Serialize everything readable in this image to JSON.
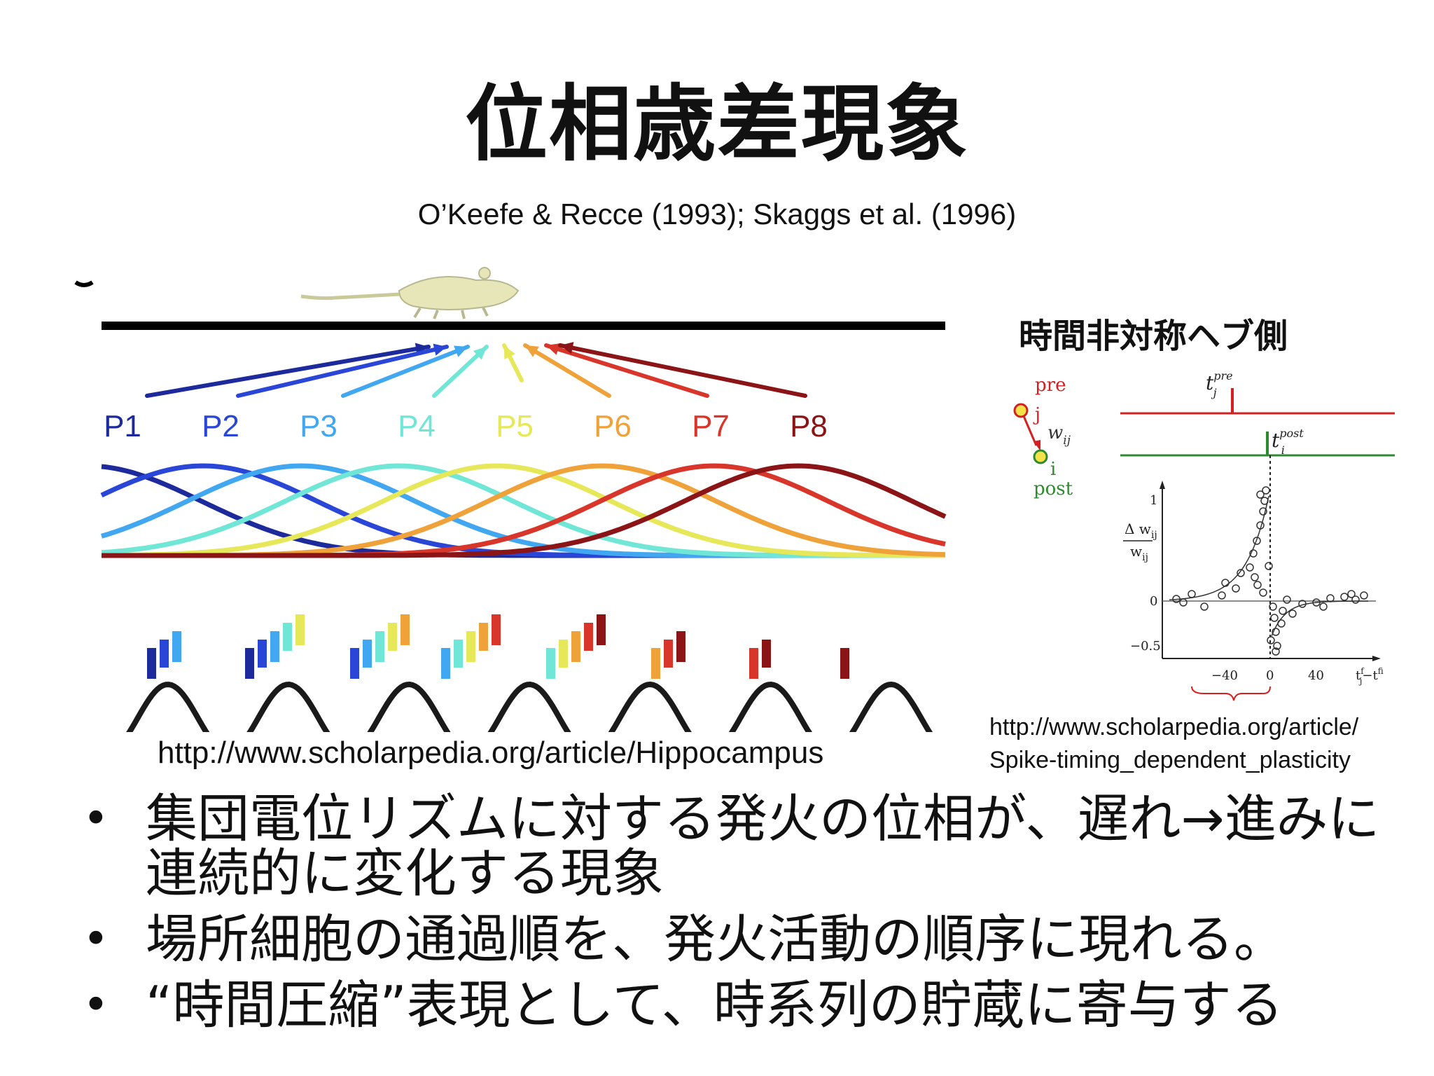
{
  "slide": {
    "title": "位相歳差現象",
    "citation": "O’Keefe & Recce (1993); Skaggs et al. (1996)"
  },
  "left_figure": {
    "labels": [
      "P1",
      "P2",
      "P3",
      "P4",
      "P5",
      "P6",
      "P7",
      "P8"
    ],
    "colors": [
      "#1d2a9c",
      "#2946d6",
      "#41a7f0",
      "#6fe6d6",
      "#e6e85a",
      "#f0a23a",
      "#d8352b",
      "#8b1416"
    ],
    "track_color": "#000000",
    "rat_color": "#e6e6b8",
    "wave_color": "#1a1a1a",
    "url": "http://www.scholarpedia.org/article/Hippocampus"
  },
  "right_figure": {
    "title": "時間非対称ヘブ側",
    "pre_label": "pre",
    "j_label": "j",
    "w_label": "w",
    "w_sub": "ij",
    "i_label": "i",
    "post_label": "post",
    "tj_label": "t",
    "tj_sub": "j",
    "tj_sup": "pre",
    "ti_label": "t",
    "ti_sub": "i",
    "ti_sup": "post",
    "ylabel_num": "Δ w",
    "ylabel_num_sub": "ij",
    "ylabel_den": "w",
    "ylabel_den_sub": "ij",
    "ytick_1": "1",
    "ytick_0": "0",
    "ytick_m05": "−0.5",
    "xtick_m40": "−40",
    "xtick_0": "0",
    "xtick_40": "40",
    "xlabel": "t",
    "xlabel_sup1": "f",
    "xlabel_sub1": "j",
    "xlabel_minus": "−t",
    "xlabel_sup2": "f",
    "xlabel_sub2": "i",
    "pre_color": "#d42020",
    "post_color": "#2f8a2f",
    "url_line1": "http://www.scholarpedia.org/article/",
    "url_line2": "Spike-timing_dependent_plasticity"
  },
  "bullets": [
    "集団電位リズムに対する発火の位相が、遅れ→進みに連続的に変化する現象",
    "場所細胞の通過順を、発火活動の順序に現れる。",
    "“時間圧縮”表現として、時系列の貯蔵に寄与する"
  ]
}
